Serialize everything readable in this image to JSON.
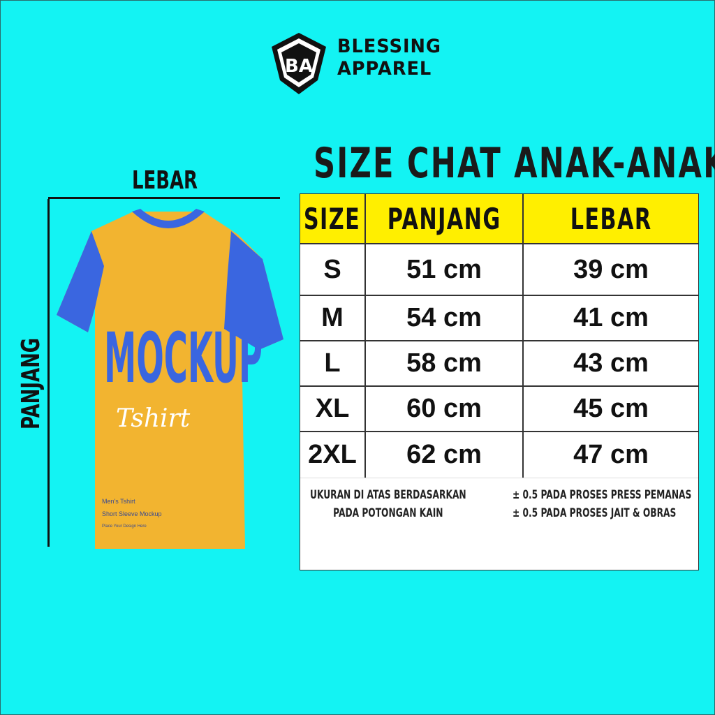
{
  "brand": {
    "name_line1": "BLESSING",
    "name_line2": "APPAREL",
    "logo_letters": "BA"
  },
  "title": "SIZE CHAT ANAK-ANAK",
  "measure_labels": {
    "width": "LEBAR",
    "length": "PANJANG"
  },
  "table": {
    "headers": [
      "SIZE",
      "PANJANG",
      "LEBAR"
    ],
    "rows": [
      {
        "size": "S",
        "panjang": "51 cm",
        "lebar": "39 cm"
      },
      {
        "size": "M",
        "panjang": "54 cm",
        "lebar": "41 cm"
      },
      {
        "size": "L",
        "panjang": "58 cm",
        "lebar": "43 cm"
      },
      {
        "size": "XL",
        "panjang": "60 cm",
        "lebar": "45 cm"
      },
      {
        "size": "2XL",
        "panjang": "62 cm",
        "lebar": "47 cm"
      }
    ],
    "header_color": "#ffef00"
  },
  "notes": {
    "left": [
      "UKURAN DI ATAS BERDASARKAN",
      "PADA POTONGAN KAIN"
    ],
    "right": [
      "± 0.5 PADA PROSES PRESS PEMANAS",
      "± 0.5 PADA PROSES JAIT & OBRAS"
    ]
  },
  "shirt": {
    "print_big": "MOCKUP",
    "print_script": "Tshirt",
    "small_line1": "Men's Tshirt",
    "small_line2": "Short Sleeve Mockup",
    "small_line3": "Place Your Design Here",
    "body_color": "#f2b430",
    "sleeve_color": "#3a66e0"
  },
  "background_color": "#13f3f3"
}
